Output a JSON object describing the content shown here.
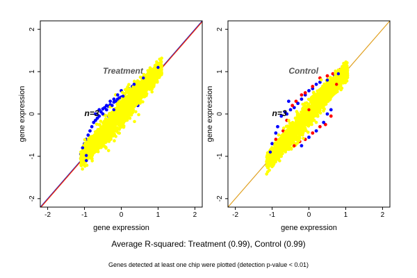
{
  "caption": "Average R-squared: Treatment (0.99), Control (0.99)",
  "note": "Genes detected at least one chip were plotted (detection p-value < 0.01)",
  "colors": {
    "yellow": "#ffff00",
    "blue": "#0000ff",
    "red": "#ff0000",
    "line_red": "#ff2a00",
    "line_blue": "#2020c0",
    "line_orange": "#e0a020",
    "frame": "#000000"
  },
  "chart_data": [
    {
      "type": "scatter",
      "title": "Treatment",
      "annotation": "n=3",
      "xlabel": "gene expression",
      "ylabel": "gene expression",
      "xlim": [
        -2.2,
        2.2
      ],
      "ylim": [
        -2.2,
        2.2
      ],
      "xticks": [
        -2,
        -1,
        0,
        1,
        2
      ],
      "yticks": [
        -2,
        -1,
        0,
        1,
        2
      ],
      "grid": false,
      "reference_lines": [
        {
          "name": "",
          "color": "#2020c0",
          "intercept": 0,
          "slope": 1
        },
        {
          "name": "",
          "color": "#ff2a00",
          "intercept": -0.02,
          "slope": 1
        }
      ],
      "cloud": {
        "color": "#ffff00",
        "center": [
          -0.05,
          -0.02
        ],
        "x_range": [
          -1.1,
          1.1
        ],
        "spread": 0.16
      },
      "series": [
        {
          "color": "#0000ff",
          "points": [
            [
              -0.55,
              0.05
            ],
            [
              -0.5,
              0.12
            ],
            [
              -0.45,
              0.15
            ],
            [
              -0.4,
              0.1
            ],
            [
              -0.35,
              0.18
            ],
            [
              -0.3,
              0.22
            ],
            [
              -0.25,
              0.2
            ],
            [
              -0.2,
              0.28
            ],
            [
              -0.15,
              0.3
            ],
            [
              -0.1,
              0.35
            ],
            [
              -0.05,
              0.38
            ],
            [
              0.0,
              0.4
            ],
            [
              0.05,
              0.42
            ],
            [
              0.1,
              0.48
            ],
            [
              0.15,
              0.55
            ],
            [
              -0.6,
              -0.05
            ],
            [
              -0.65,
              -0.1
            ],
            [
              -0.7,
              -0.15
            ],
            [
              -0.75,
              -0.2
            ],
            [
              -0.8,
              -0.3
            ],
            [
              -0.85,
              -0.4
            ],
            [
              -0.9,
              -0.5
            ],
            [
              -0.95,
              -0.6
            ],
            [
              -1.0,
              -0.7
            ],
            [
              -1.05,
              -0.8
            ],
            [
              -1.1,
              -0.95
            ],
            [
              -1.05,
              -1.05
            ],
            [
              -0.95,
              -0.98
            ],
            [
              -0.3,
              0.3
            ],
            [
              -0.2,
              0.35
            ],
            [
              -0.1,
              0.45
            ],
            [
              0.2,
              0.6
            ],
            [
              0.3,
              0.65
            ],
            [
              0.35,
              0.7
            ],
            [
              0.0,
              0.55
            ],
            [
              -0.4,
              0.2
            ],
            [
              0.6,
              0.85
            ],
            [
              0.7,
              0.9
            ],
            [
              0.9,
              1.05
            ],
            [
              1.0,
              1.1
            ],
            [
              -0.6,
              0.1
            ],
            [
              -0.7,
              0.0
            ],
            [
              -0.5,
              0.0
            ],
            [
              0.45,
              0.2
            ],
            [
              0.5,
              0.3
            ],
            [
              -0.2,
              0.1
            ],
            [
              -0.35,
              -0.05
            ],
            [
              0.1,
              0.2
            ],
            [
              -0.95,
              -1.1
            ],
            [
              -1.1,
              -1.05
            ]
          ]
        }
      ]
    },
    {
      "type": "scatter",
      "title": "Control",
      "annotation": "n=3",
      "xlabel": "gene expression",
      "ylabel": "gene expression",
      "xlim": [
        -2.2,
        2.2
      ],
      "ylim": [
        -2.2,
        2.2
      ],
      "xticks": [
        -2,
        -1,
        0,
        1,
        2
      ],
      "yticks": [
        -2,
        -1,
        0,
        1,
        2
      ],
      "grid": false,
      "reference_lines": [
        {
          "name": "",
          "color": "#e0a020",
          "intercept": 0,
          "slope": 1
        }
      ],
      "cloud": {
        "color": "#ffff00",
        "center": [
          -0.1,
          -0.1
        ],
        "x_range": [
          -1.15,
          1.05
        ],
        "spread": 0.15
      },
      "series": [
        {
          "color": "#0000ff",
          "points": [
            [
              -0.6,
              0.0
            ],
            [
              -0.5,
              0.1
            ],
            [
              -0.4,
              0.15
            ],
            [
              -0.3,
              0.25
            ],
            [
              -0.2,
              0.35
            ],
            [
              -0.1,
              0.45
            ],
            [
              0.0,
              0.55
            ],
            [
              0.2,
              0.7
            ],
            [
              0.3,
              0.75
            ],
            [
              0.5,
              0.8
            ],
            [
              0.7,
              0.9
            ],
            [
              0.9,
              1.0
            ],
            [
              -0.85,
              -0.3
            ],
            [
              -0.9,
              -0.45
            ],
            [
              -1.0,
              -0.7
            ],
            [
              -1.05,
              -0.9
            ],
            [
              -1.1,
              -1.05
            ],
            [
              -0.95,
              -1.1
            ],
            [
              -0.2,
              -0.75
            ],
            [
              0.0,
              -0.55
            ],
            [
              0.2,
              -0.4
            ],
            [
              0.4,
              -0.2
            ],
            [
              0.6,
              0.1
            ],
            [
              -0.75,
              -0.05
            ],
            [
              -0.65,
              0.05
            ],
            [
              -0.55,
              0.3
            ],
            [
              0.1,
              0.6
            ],
            [
              0.8,
              0.95
            ],
            [
              -0.8,
              -0.75
            ],
            [
              0.5,
              0.0
            ]
          ]
        },
        {
          "color": "#ff0000",
          "points": [
            [
              -0.45,
              0.2
            ],
            [
              -0.35,
              0.3
            ],
            [
              -0.2,
              0.45
            ],
            [
              -0.1,
              0.5
            ],
            [
              0.1,
              0.65
            ],
            [
              0.3,
              0.85
            ],
            [
              0.5,
              0.9
            ],
            [
              0.65,
              0.95
            ],
            [
              0.85,
              1.05
            ],
            [
              -0.9,
              -0.6
            ],
            [
              -1.0,
              -0.85
            ],
            [
              -0.8,
              -0.9
            ],
            [
              -0.4,
              -0.75
            ],
            [
              -0.25,
              -0.65
            ],
            [
              -0.1,
              -0.6
            ],
            [
              0.1,
              -0.45
            ],
            [
              0.3,
              -0.3
            ],
            [
              0.45,
              -0.25
            ],
            [
              0.6,
              -0.05
            ],
            [
              -0.6,
              -0.15
            ],
            [
              -0.7,
              -0.4
            ],
            [
              0.0,
              0.1
            ],
            [
              -0.3,
              -0.2
            ],
            [
              0.2,
              0.3
            ],
            [
              0.75,
              0.7
            ]
          ]
        }
      ]
    }
  ]
}
